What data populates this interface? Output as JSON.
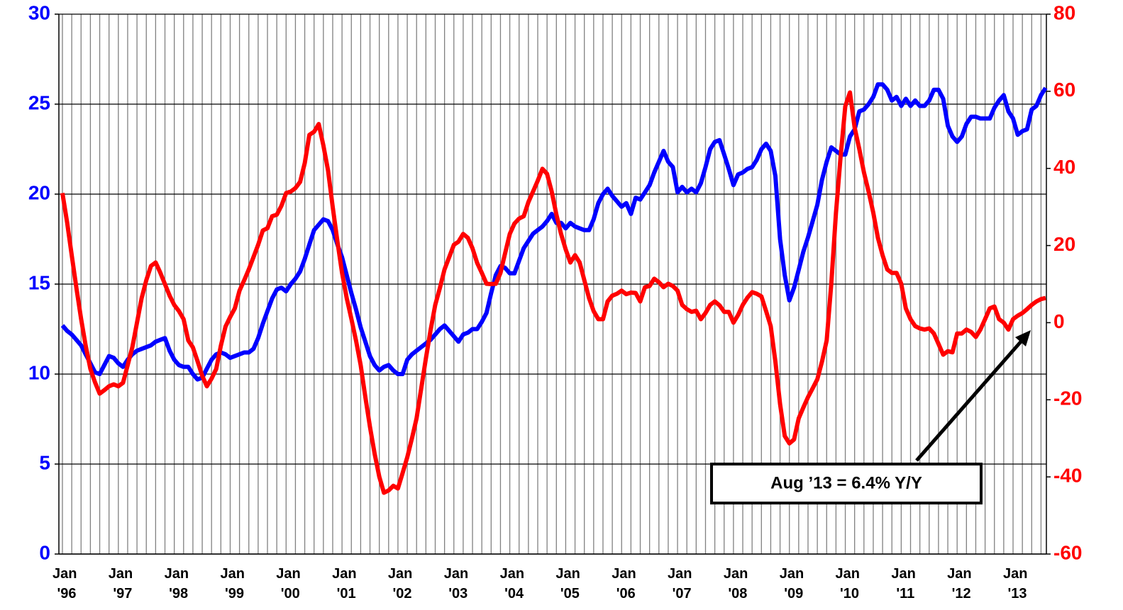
{
  "chart_data": {
    "type": "line",
    "annotation": "Aug ’13 = 6.4% Y/Y",
    "categories": [
      "Jan '96",
      null,
      null,
      null,
      null,
      null,
      null,
      null,
      null,
      null,
      null,
      null,
      "Jan '97",
      null,
      null,
      null,
      null,
      null,
      null,
      null,
      null,
      null,
      null,
      null,
      "Jan '98",
      null,
      null,
      null,
      null,
      null,
      null,
      null,
      null,
      null,
      null,
      null,
      "Jan '99",
      null,
      null,
      null,
      null,
      null,
      null,
      null,
      null,
      null,
      null,
      null,
      "Jan '00",
      null,
      null,
      null,
      null,
      null,
      null,
      null,
      null,
      null,
      null,
      null,
      "Jan '01",
      null,
      null,
      null,
      null,
      null,
      null,
      null,
      null,
      null,
      null,
      null,
      "Jan '02",
      null,
      null,
      null,
      null,
      null,
      null,
      null,
      null,
      null,
      null,
      null,
      "Jan '03",
      null,
      null,
      null,
      null,
      null,
      null,
      null,
      null,
      null,
      null,
      null,
      "Jan '04",
      null,
      null,
      null,
      null,
      null,
      null,
      null,
      null,
      null,
      null,
      null,
      "Jan '05",
      null,
      null,
      null,
      null,
      null,
      null,
      null,
      null,
      null,
      null,
      null,
      "Jan '06",
      null,
      null,
      null,
      null,
      null,
      null,
      null,
      null,
      null,
      null,
      null,
      "Jan '07",
      null,
      null,
      null,
      null,
      null,
      null,
      null,
      null,
      null,
      null,
      null,
      "Jan '08",
      null,
      null,
      null,
      null,
      null,
      null,
      null,
      null,
      null,
      null,
      null,
      "Jan '09",
      null,
      null,
      null,
      null,
      null,
      null,
      null,
      null,
      null,
      null,
      null,
      "Jan '10",
      null,
      null,
      null,
      null,
      null,
      null,
      null,
      null,
      null,
      null,
      null,
      "Jan '11",
      null,
      null,
      null,
      null,
      null,
      null,
      null,
      null,
      null,
      null,
      null,
      "Jan '12",
      null,
      null,
      null,
      null,
      null,
      null,
      null,
      null,
      null,
      null,
      null,
      "Jan '13",
      null,
      null,
      null,
      null,
      null,
      null,
      null
    ],
    "series": [
      {
        "color": "#0000ff",
        "values": [
          12.7,
          12.4,
          12.2,
          11.9,
          11.6,
          11.1,
          10.6,
          10.1,
          10.0,
          10.5,
          11.0,
          10.9,
          10.6,
          10.4,
          10.8,
          11.1,
          11.3,
          11.4,
          11.5,
          11.6,
          11.8,
          11.9,
          12.0,
          11.3,
          10.8,
          10.5,
          10.4,
          10.4,
          10.0,
          9.7,
          9.8,
          10.3,
          10.8,
          11.1,
          11.2,
          11.1,
          10.9,
          11.0,
          11.1,
          11.2,
          11.2,
          11.4,
          12.0,
          12.8,
          13.5,
          14.2,
          14.7,
          14.8,
          14.6,
          15.0,
          15.3,
          15.7,
          16.4,
          17.2,
          18.0,
          18.3,
          18.6,
          18.5,
          18.0,
          17.2,
          16.5,
          15.5,
          14.5,
          13.6,
          12.6,
          11.8,
          11.0,
          10.5,
          10.2,
          10.4,
          10.5,
          10.2,
          10.0,
          10.0,
          10.8,
          11.1,
          11.3,
          11.5,
          11.7,
          11.9,
          12.2,
          12.5,
          12.7,
          12.4,
          12.1,
          11.8,
          12.2,
          12.3,
          12.5,
          12.5,
          12.9,
          13.4,
          14.5,
          15.5,
          16.0,
          15.9,
          15.6,
          15.6,
          16.3,
          17.0,
          17.4,
          17.8,
          18.0,
          18.2,
          18.5,
          18.9,
          18.4,
          18.4,
          18.1,
          18.4,
          18.2,
          18.1,
          18.0,
          18.0,
          18.6,
          19.5,
          20.0,
          20.3,
          19.9,
          19.6,
          19.3,
          19.5,
          18.9,
          19.8,
          19.7,
          20.1,
          20.5,
          21.2,
          21.8,
          22.4,
          21.8,
          21.5,
          20.1,
          20.4,
          20.1,
          20.3,
          20.1,
          20.6,
          21.5,
          22.5,
          22.9,
          23.0,
          22.2,
          21.4,
          20.5,
          21.1,
          21.2,
          21.4,
          21.5,
          21.9,
          22.5,
          22.8,
          22.4,
          21.0,
          17.5,
          15.5,
          14.1,
          14.8,
          15.8,
          16.8,
          17.6,
          18.5,
          19.4,
          20.8,
          21.8,
          22.6,
          22.4,
          22.2,
          22.2,
          23.2,
          23.6,
          24.6,
          24.7,
          25.0,
          25.4,
          26.1,
          26.1,
          25.8,
          25.2,
          25.4,
          24.9,
          25.3,
          24.9,
          25.2,
          24.9,
          24.9,
          25.2,
          25.8,
          25.8,
          25.3,
          23.8,
          23.2,
          22.9,
          23.2,
          23.9,
          24.3,
          24.3,
          24.2,
          24.2,
          24.2,
          24.8,
          25.2,
          25.5,
          24.6,
          24.2,
          23.3,
          23.5,
          23.6,
          24.7,
          24.9,
          25.5,
          25.9
        ]
      },
      {
        "color": "#ff0000",
        "axis": "y2",
        "values": [
          33.6,
          26,
          17.5,
          9,
          1,
          -6,
          -12,
          -15.5,
          -18.4,
          -17.5,
          -16.5,
          -16,
          -16.5,
          -15.6,
          -11,
          -6.4,
          0,
          6.4,
          11,
          14.7,
          15.6,
          13,
          10,
          7,
          4.6,
          3,
          0.9,
          -4.6,
          -6.4,
          -10,
          -13.8,
          -16.5,
          -14.5,
          -12,
          -6,
          -1,
          1.5,
          3.7,
          8.3,
          11,
          13.8,
          17,
          20.2,
          23.9,
          24.5,
          27.6,
          28,
          30.3,
          33.6,
          34,
          34.9,
          36.5,
          41.4,
          48.7,
          49.5,
          51.5,
          46,
          39.5,
          30,
          21.1,
          13,
          6.4,
          1,
          -4.6,
          -11,
          -19.3,
          -27,
          -34,
          -40,
          -44.1,
          -43.5,
          -42.3,
          -43,
          -39,
          -34.9,
          -30,
          -24.8,
          -17,
          -9.2,
          -2,
          4.6,
          9,
          13.8,
          17,
          20.2,
          21,
          23,
          22,
          19.3,
          15.5,
          12.9,
          10.1,
          10,
          10.1,
          12.9,
          18,
          23,
          25.7,
          27,
          27.6,
          31.3,
          34,
          36.8,
          39.9,
          38.6,
          34,
          28,
          23,
          19,
          15.6,
          17.5,
          15.6,
          11,
          6.4,
          3,
          0.9,
          0.9,
          5.5,
          7,
          7.5,
          8.3,
          7.4,
          7.8,
          7.7,
          5.5,
          9.2,
          9.5,
          11.4,
          10.5,
          9.2,
          10.1,
          9.5,
          8.3,
          4.6,
          3.5,
          2.8,
          3.1,
          0.9,
          2.5,
          4.6,
          5.5,
          4.5,
          2.8,
          2.8,
          0,
          2,
          4.6,
          6.5,
          7.9,
          7.5,
          6.8,
          3,
          -0.9,
          -10.1,
          -21.1,
          -29.4,
          -31.3,
          -30.3,
          -24.8,
          -22,
          -19.3,
          -17,
          -14.7,
          -10.1,
          -4.6,
          10.1,
          28.5,
          43.2,
          56.1,
          59.7,
          50.6,
          45,
          39,
          34,
          28.5,
          22,
          17.5,
          13.8,
          12.9,
          12.9,
          10.1,
          3.7,
          0.9,
          -0.9,
          -1.5,
          -1.8,
          -1.5,
          -2.8,
          -5.5,
          -8.3,
          -7.4,
          -7.7,
          -2.8,
          -2.8,
          -1.8,
          -2.4,
          -3.7,
          -1.8,
          0.9,
          3.7,
          4.2,
          0.9,
          0,
          -1.8,
          0.9,
          1.8,
          2.5,
          3.5,
          4.6,
          5.5,
          6.1,
          6.4
        ]
      }
    ],
    "ylim": [
      0,
      30
    ],
    "yticks": [
      0,
      5,
      10,
      15,
      20,
      25,
      30
    ],
    "y2lim": [
      -60,
      80
    ],
    "y2ticks": [
      -60,
      -40,
      -20,
      0,
      20,
      40,
      60,
      80
    ],
    "grid": true
  }
}
